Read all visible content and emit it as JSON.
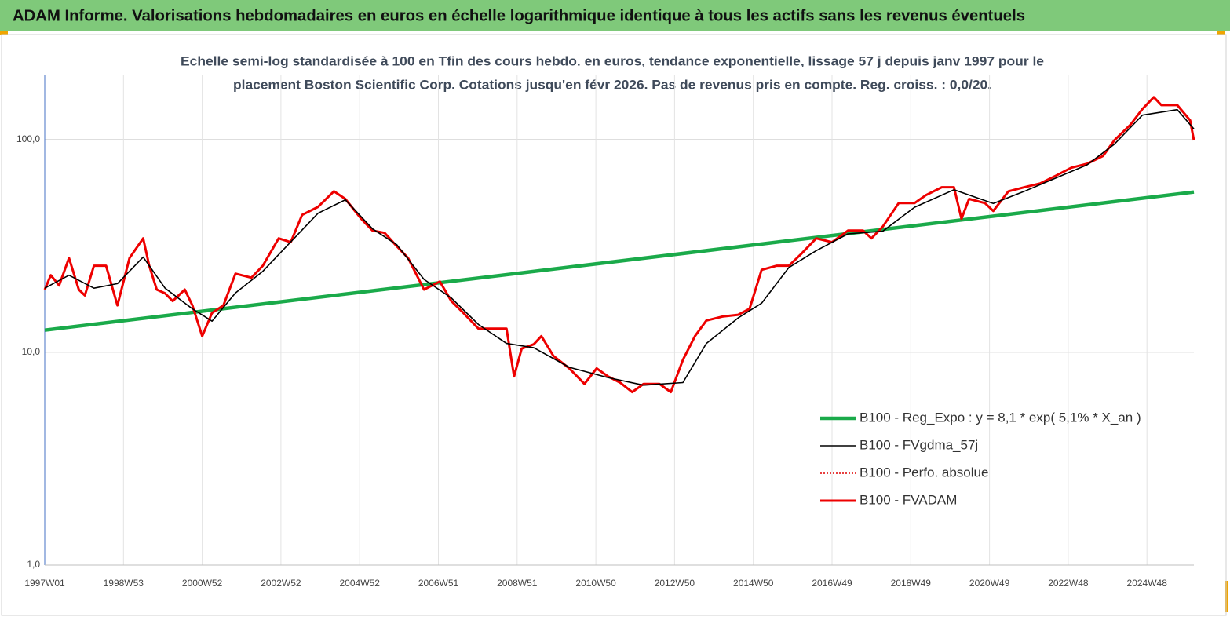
{
  "chart_data": {
    "type": "line",
    "title": "ADAM Informe. Valorisations hebdomadaires en euros en échelle logarithmique identique à tous les actifs sans les revenus éventuels",
    "subtitle": [
      "Echelle semi-log standardisée à 100 en Tfin des cours hebdo. en euros, tendance exponentielle, lissage 57 j depuis janv 1997 pour le",
      "placement Boston Scientific Corp. Cotations jusqu'en févr 2026. Pas de revenus pris en compte. Reg. croiss. : 0,0/20."
    ],
    "log_y": true,
    "grid": true,
    "legend": "right",
    "ylim": [
      1,
      200
    ],
    "yticks": [
      {
        "value": 1,
        "label": "1,0"
      },
      {
        "value": 10,
        "label": "10,0"
      },
      {
        "value": 100,
        "label": "100,0"
      }
    ],
    "xlim": [
      0,
      1518
    ],
    "xticks": [
      {
        "value": 0,
        "label": "1997W01"
      },
      {
        "value": 104,
        "label": "1998W53"
      },
      {
        "value": 208,
        "label": "2000W52"
      },
      {
        "value": 312,
        "label": "2002W52"
      },
      {
        "value": 416,
        "label": "2004W52"
      },
      {
        "value": 520,
        "label": "2006W51"
      },
      {
        "value": 624,
        "label": "2008W51"
      },
      {
        "value": 728,
        "label": "2010W50"
      },
      {
        "value": 832,
        "label": "2012W50"
      },
      {
        "value": 936,
        "label": "2014W50"
      },
      {
        "value": 1040,
        "label": "2016W49"
      },
      {
        "value": 1144,
        "label": "2018W49"
      },
      {
        "value": 1248,
        "label": "2020W49"
      },
      {
        "value": 1352,
        "label": "2022W48"
      },
      {
        "value": 1456,
        "label": "2024W48"
      }
    ],
    "series": [
      {
        "name": "B100 - Reg_Expo : y = 8,1 *  exp( 5,1% *  X_an )",
        "color": "#1aaa4a",
        "x": [
          0,
          1518
        ],
        "values": [
          12.7,
          56.6
        ]
      },
      {
        "name": "B100 - FVgdma_57j",
        "color": "#000000",
        "x": [
          0,
          32,
          65,
          96,
          130,
          159,
          195,
          221,
          252,
          288,
          325,
          361,
          397,
          433,
          465,
          501,
          537,
          573,
          610,
          646,
          693,
          744,
          791,
          843,
          874,
          916,
          947,
          983,
          1019,
          1061,
          1107,
          1149,
          1201,
          1253,
          1294,
          1336,
          1377,
          1413,
          1450,
          1496,
          1518
        ],
        "values": [
          20,
          23,
          20,
          21,
          28,
          20,
          16,
          14,
          19,
          24,
          33,
          45,
          52,
          38,
          32,
          22,
          18,
          13.5,
          11,
          10.5,
          8.5,
          7.6,
          7,
          7.2,
          11,
          14.5,
          17,
          25,
          30,
          36,
          37,
          48,
          58,
          50,
          57,
          66,
          76,
          95,
          130,
          138,
          112
        ]
      },
      {
        "name": "B100 - Perfo. absolue",
        "color": "#e00000",
        "dash": "dotted",
        "x": [
          0,
          8,
          19,
          32,
          45,
          53,
          65,
          81,
          96,
          112,
          130,
          138,
          148,
          159,
          169,
          185,
          195,
          208,
          221,
          236,
          252,
          273,
          288,
          309,
          325,
          340,
          361,
          382,
          397,
          418,
          433,
          449,
          465,
          480,
          501,
          522,
          537,
          553,
          573,
          594,
          610,
          620,
          630,
          646,
          656,
          672,
          693,
          713,
          729,
          744,
          760,
          776,
          791,
          812,
          827,
          843,
          859,
          874,
          895,
          916,
          931,
          947,
          967,
          983,
          999,
          1019,
          1040,
          1061,
          1081,
          1092,
          1107,
          1128,
          1149,
          1164,
          1185,
          1201,
          1211,
          1221,
          1242,
          1253,
          1273,
          1294,
          1315,
          1336,
          1356,
          1377,
          1398,
          1413,
          1434,
          1450,
          1465,
          1475,
          1496,
          1513,
          1518
        ],
        "values": [
          19.7,
          23,
          20.6,
          27.7,
          19.7,
          18.5,
          25.5,
          25.5,
          16.6,
          27.7,
          34.3,
          25.5,
          19.7,
          18.9,
          17.4,
          19.7,
          16.6,
          11.9,
          15.3,
          16.6,
          23.4,
          22.4,
          25.5,
          34.3,
          32.9,
          44.2,
          48.2,
          57,
          52.5,
          42.4,
          37.3,
          36.4,
          31.5,
          27.7,
          19.7,
          21.5,
          17.4,
          15.3,
          12.9,
          12.9,
          12.9,
          7.7,
          10.4,
          10.9,
          11.9,
          9.6,
          8.4,
          7.1,
          8.4,
          7.7,
          7.2,
          6.5,
          7.1,
          7.1,
          6.5,
          9.2,
          11.9,
          14.1,
          14.7,
          15,
          16,
          24.4,
          25.5,
          25.5,
          28.9,
          34.3,
          32.9,
          37.3,
          37.3,
          34.3,
          38.9,
          50.2,
          50.2,
          54.7,
          59.6,
          59.6,
          42.4,
          52.5,
          50.2,
          46.1,
          57,
          59.6,
          62.1,
          67.6,
          73.6,
          76.9,
          83.7,
          99.1,
          117,
          139,
          158,
          145,
          145,
          123,
          99
        ]
      },
      {
        "name": "B100 - FVADAM",
        "color": "#ee0000",
        "x": [
          0,
          8,
          19,
          32,
          45,
          53,
          65,
          81,
          96,
          112,
          130,
          138,
          148,
          159,
          169,
          185,
          195,
          208,
          221,
          236,
          252,
          273,
          288,
          309,
          325,
          340,
          361,
          382,
          397,
          418,
          433,
          449,
          465,
          480,
          501,
          522,
          537,
          553,
          573,
          594,
          610,
          620,
          630,
          646,
          656,
          672,
          693,
          713,
          729,
          744,
          760,
          776,
          791,
          812,
          827,
          843,
          859,
          874,
          895,
          916,
          931,
          947,
          967,
          983,
          999,
          1019,
          1040,
          1061,
          1081,
          1092,
          1107,
          1128,
          1149,
          1164,
          1185,
          1201,
          1211,
          1221,
          1242,
          1253,
          1273,
          1294,
          1315,
          1336,
          1356,
          1377,
          1398,
          1413,
          1434,
          1450,
          1465,
          1475,
          1496,
          1513,
          1518
        ],
        "values": [
          19.7,
          23,
          20.6,
          27.7,
          19.7,
          18.5,
          25.5,
          25.5,
          16.6,
          27.7,
          34.3,
          25.5,
          19.7,
          18.9,
          17.4,
          19.7,
          16.6,
          11.9,
          15.3,
          16.6,
          23.4,
          22.4,
          25.5,
          34.3,
          32.9,
          44.2,
          48.2,
          57,
          52.5,
          42.4,
          37.3,
          36.4,
          31.5,
          27.7,
          19.7,
          21.5,
          17.4,
          15.3,
          12.9,
          12.9,
          12.9,
          7.7,
          10.4,
          10.9,
          11.9,
          9.6,
          8.4,
          7.1,
          8.4,
          7.7,
          7.2,
          6.5,
          7.1,
          7.1,
          6.5,
          9.2,
          11.9,
          14.1,
          14.7,
          15,
          16,
          24.4,
          25.5,
          25.5,
          28.9,
          34.3,
          32.9,
          37.3,
          37.3,
          34.3,
          38.9,
          50.2,
          50.2,
          54.7,
          59.6,
          59.6,
          42.4,
          52.5,
          50.2,
          46.1,
          57,
          59.6,
          62.1,
          67.6,
          73.6,
          76.9,
          83.7,
          99.1,
          117,
          139,
          158,
          145,
          145,
          123,
          99
        ]
      }
    ]
  }
}
